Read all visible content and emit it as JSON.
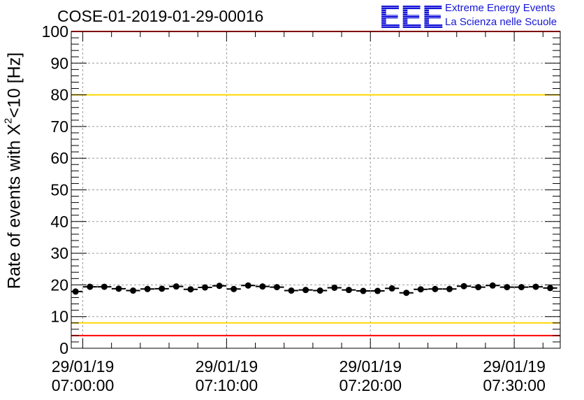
{
  "title": "COSE-01-2019-01-29-00016",
  "logo": {
    "text": "EEE",
    "line1": "Extreme Energy Events",
    "line2": "La Scienza nelle Scuole",
    "color": "#1515d6"
  },
  "ylabel": {
    "prefix": "Rate of events with X",
    "superscript": "2",
    "suffix": "<10 [Hz]"
  },
  "chart_data": {
    "type": "scatter",
    "title": "COSE-01-2019-01-29-00016",
    "ylabel": "Rate of events with X^2<10 [Hz]",
    "ylim": [
      0,
      100
    ],
    "yticks": [
      0,
      10,
      20,
      30,
      40,
      50,
      60,
      70,
      80,
      90,
      100
    ],
    "x_axis": "time (minutes after 07:00:00)",
    "xlim_minutes": [
      -0.8,
      33.2
    ],
    "xticks": [
      {
        "minute": 0,
        "date": "29/01/19",
        "time": "07:00:00"
      },
      {
        "minute": 10,
        "date": "29/01/19",
        "time": "07:10:00"
      },
      {
        "minute": 20,
        "date": "29/01/19",
        "time": "07:20:00"
      },
      {
        "minute": 30,
        "date": "29/01/19",
        "time": "07:30:00"
      }
    ],
    "grid": true,
    "x_minutes": [
      -0.5,
      0.5,
      1.5,
      2.5,
      3.5,
      4.5,
      5.5,
      6.5,
      7.5,
      8.5,
      9.5,
      10.5,
      11.5,
      12.5,
      13.5,
      14.5,
      15.5,
      16.5,
      17.5,
      18.5,
      19.5,
      20.5,
      21.5,
      22.5,
      23.5,
      24.5,
      25.5,
      26.5,
      27.5,
      28.5,
      29.5,
      30.5,
      31.5,
      32.5
    ],
    "values": [
      17.9,
      19.4,
      19.4,
      18.8,
      18.2,
      18.7,
      18.8,
      19.5,
      18.6,
      19.2,
      19.7,
      18.7,
      19.8,
      19.5,
      19.3,
      18.2,
      18.4,
      18.2,
      19.1,
      18.4,
      18.1,
      18.1,
      18.9,
      17.5,
      18.6,
      18.7,
      18.7,
      19.6,
      19.3,
      19.8,
      19.3,
      19.3,
      19.4,
      19.0
    ],
    "reference_lines": [
      {
        "y": 80,
        "color": "#ffd700"
      },
      {
        "y": 8,
        "color": "#ffd700"
      },
      {
        "y": 100,
        "color": "#ff0000"
      },
      {
        "y": 4,
        "color": "#ff0000"
      }
    ],
    "marker_color": "#000000"
  }
}
